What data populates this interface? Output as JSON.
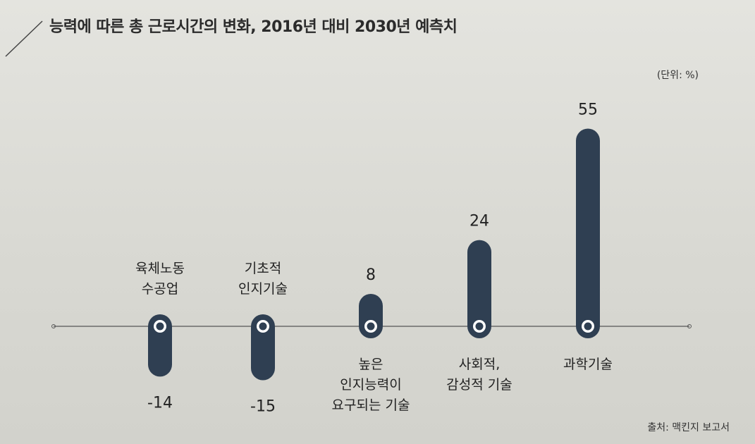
{
  "title": "능력에 따른 총 근로시간의 변화, 2016년 대비 2030년 예측치",
  "unit": "(단위: %)",
  "source": "출처: 맥킨지 보고서",
  "colors": {
    "bar": "#2f3f52",
    "axis": "#555555",
    "text": "#222222"
  },
  "chart_data": {
    "type": "bar",
    "title": "능력에 따른 총 근로시간의 변화, 2016년 대비 2030년 예측치",
    "ylabel": "(단위: %)",
    "xlabel": "",
    "categories": [
      [
        "육체노동",
        "수공업"
      ],
      [
        "기초적",
        "인지기술"
      ],
      [
        "높은",
        "인지능력이",
        "요구되는 기술"
      ],
      [
        "사회적,",
        "감성적 기술"
      ],
      [
        "과학기술"
      ]
    ],
    "values": [
      -14,
      -15,
      8,
      24,
      55
    ],
    "value_labels": [
      "-14",
      "-15",
      "8",
      "24",
      "55"
    ],
    "grid": false,
    "legend": "none"
  }
}
